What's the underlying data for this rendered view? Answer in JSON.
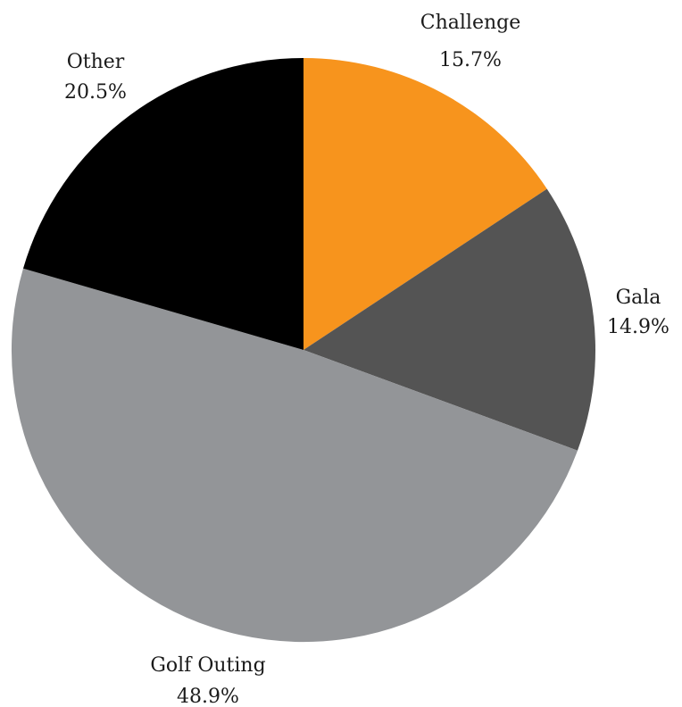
{
  "chart_data": {
    "type": "pie",
    "title": "",
    "start": "12 o'clock, clockwise",
    "slices": [
      {
        "label": "Challenge",
        "value": 15.7,
        "display": "15.7%",
        "color": "#F7941D"
      },
      {
        "label": "Gala",
        "value": 14.9,
        "display": "14.9%",
        "color": "#545454"
      },
      {
        "label": "Golf Outing",
        "value": 48.9,
        "display": "48.9%",
        "color": "#939598"
      },
      {
        "label": "Other",
        "value": 20.5,
        "display": "20.5%",
        "color": "#000000"
      }
    ]
  }
}
